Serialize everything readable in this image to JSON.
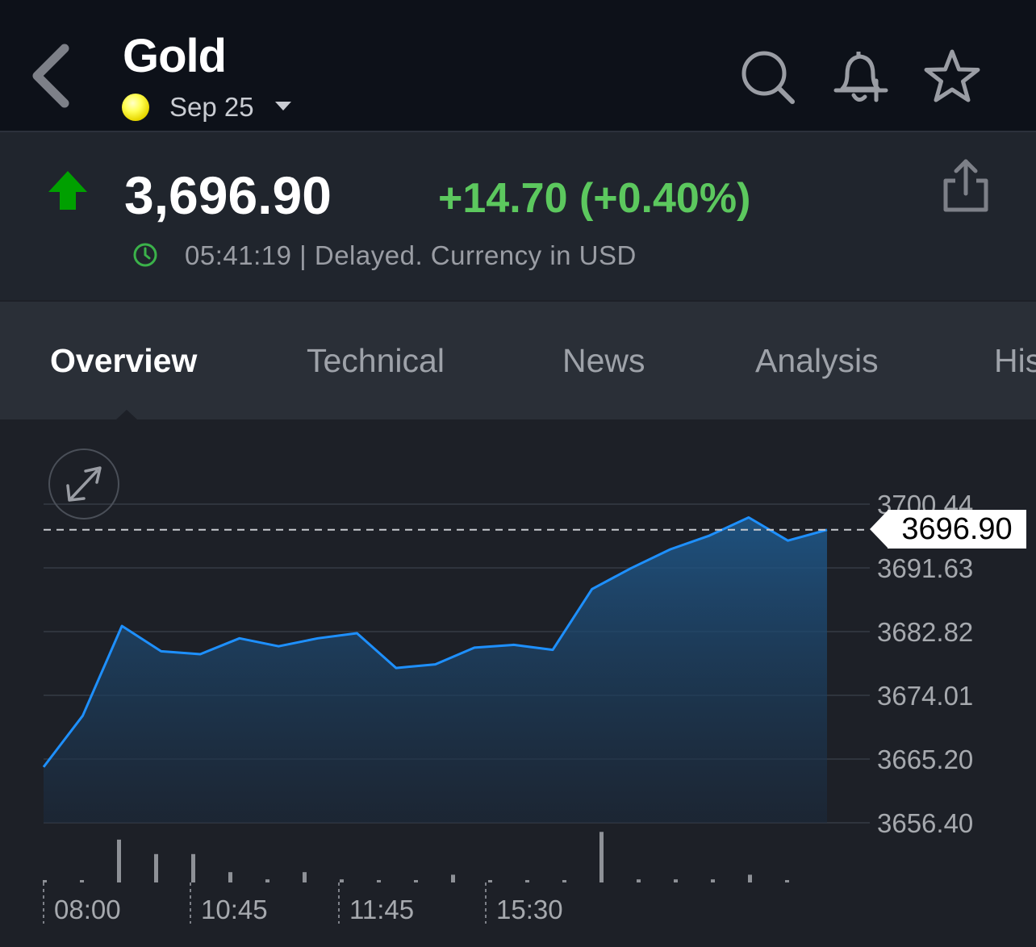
{
  "header": {
    "title": "Gold",
    "contract": "Sep 25",
    "icons": [
      "back-chevron-icon",
      "search-icon",
      "add-alert-bell-icon",
      "star-icon"
    ]
  },
  "quote": {
    "price": "3,696.90",
    "change": "+14.70 (+0.40%)",
    "time_info": "05:41:19 | Delayed. Currency in USD",
    "direction": "up",
    "colors": {
      "up": "#00a000",
      "change": "#5cc85e",
      "line": "#1e90ff"
    }
  },
  "tabs": [
    {
      "label": "Overview",
      "active": true
    },
    {
      "label": "Technical",
      "active": false
    },
    {
      "label": "News",
      "active": false
    },
    {
      "label": "Analysis",
      "active": false
    },
    {
      "label": "His",
      "active": false
    }
  ],
  "chart_data": {
    "type": "area",
    "ylim": [
      3656.4,
      3700.44
    ],
    "y_ticks": [
      "3700.44",
      "3691.63",
      "3682.82",
      "3674.01",
      "3665.20",
      "3656.40"
    ],
    "x_tick_labels": [
      "08:00",
      "10:45",
      "11:45",
      "15:30"
    ],
    "current_price_label": "3696.90",
    "current_price": 3696.9,
    "values": [
      3664.1,
      3671.2,
      3683.6,
      3680.1,
      3679.7,
      3681.9,
      3680.8,
      3681.9,
      3682.6,
      3677.8,
      3678.3,
      3680.6,
      3681.0,
      3680.3,
      3688.7,
      3691.6,
      3694.2,
      3696.1,
      3698.6,
      3695.4,
      3696.9
    ],
    "volume": [
      0.0,
      0.02,
      0.83,
      0.55,
      0.55,
      0.2,
      0.06,
      0.2,
      0.06,
      0.02,
      0.02,
      0.15,
      0.0,
      0.02,
      0.02,
      0.98,
      0.06,
      0.06,
      0.06,
      0.15,
      0.0
    ]
  }
}
